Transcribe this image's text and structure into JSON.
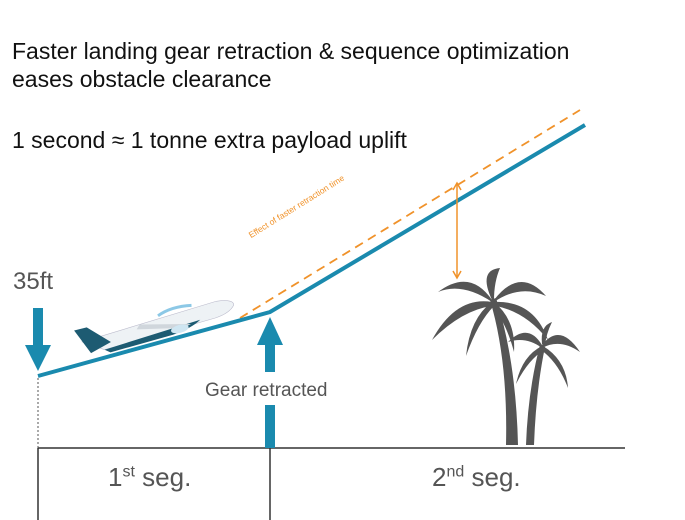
{
  "headline": {
    "line1": "Faster landing gear retraction & sequence optimization",
    "line2": "eases obstacle clearance",
    "tagline": "1 second ≈ 1 tonne extra payload uplift"
  },
  "labels": {
    "height": "35ft",
    "gear": "Gear retracted",
    "effect": "Effect of faster retraction time",
    "seg1_num": "1",
    "seg1_sup": "st",
    "seg1_word": " seg.",
    "seg2_num": "2",
    "seg2_sup": "nd",
    "seg2_word": " seg."
  },
  "colors": {
    "trajectory": "#1a8aae",
    "effect": "#f0922a",
    "text_gray": "#555555",
    "tree": "#555555"
  }
}
